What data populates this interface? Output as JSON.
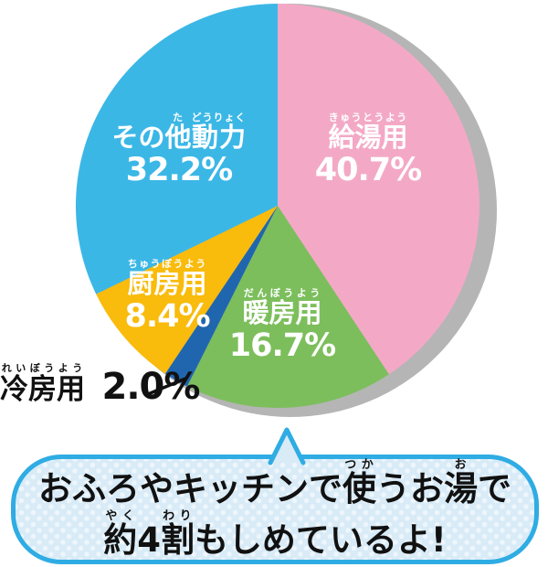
{
  "colors": {
    "kyuto": "#F3A9C6",
    "danbo": "#7CBE5C",
    "reibo": "#2066AF",
    "chubo": "#F9BB0C",
    "sonota": "#3BB7E6",
    "shadow": "#B5B5B5",
    "bubble-border": "#2FACE3",
    "bubble-bg": "#D8EBF7",
    "bubble-dot": "#EEF6FC",
    "label-on-slice": "#FFFFFF",
    "label-outside": "#111111"
  },
  "chart_data": {
    "type": "pie",
    "unit": "%",
    "start_angle_deg": 0,
    "direction": "clockwise",
    "legend_position": "on-slice",
    "slices": [
      {
        "id": "kyuto",
        "label": "給湯用",
        "furigana": "きゅうとうよう",
        "value": 40.7,
        "pct_label": "40.7%",
        "color": "#F3A9C6",
        "label_placement": "inside"
      },
      {
        "id": "danbo",
        "label": "暖房用",
        "furigana": "だんぼうよう",
        "value": 16.7,
        "pct_label": "16.7%",
        "color": "#7CBE5C",
        "label_placement": "inside"
      },
      {
        "id": "reibo",
        "label": "冷房用",
        "furigana": "れいぼうよう",
        "value": 2.0,
        "pct_label": "2.0%",
        "color": "#2066AF",
        "label_placement": "outside-with-leader-line"
      },
      {
        "id": "chubo",
        "label": "厨房用",
        "furigana": "ちゅうぼうよう",
        "value": 8.4,
        "pct_label": "8.4%",
        "color": "#F9BB0C",
        "label_placement": "inside"
      },
      {
        "id": "sonota",
        "label": "その他動力",
        "furigana": "た どうりょく",
        "value": 32.2,
        "pct_label": "32.2%",
        "color": "#3BB7E6",
        "label_placement": "inside"
      }
    ]
  },
  "labels": {
    "kyuto": {
      "parts": [
        {
          "t": "給湯用",
          "r": "きゅうとうよう"
        }
      ],
      "pct": "40.7%"
    },
    "danbo": {
      "parts": [
        {
          "t": "暖房用",
          "r": "だんぼうよう"
        }
      ],
      "pct": "16.7%"
    },
    "chubo": {
      "parts": [
        {
          "t": "厨房用",
          "r": "ちゅうぼうよう"
        }
      ],
      "pct": "8.4%"
    },
    "sonota": {
      "parts": [
        {
          "t": "その"
        },
        {
          "t": "他",
          "r": "た"
        },
        {
          "t": "動力",
          "r": "どうりょく"
        }
      ],
      "pct": "32.2%"
    },
    "reibo": {
      "parts": [
        {
          "t": "冷房用",
          "r": "れいぼうよう"
        }
      ],
      "pct": "2.0%"
    }
  },
  "callout": {
    "line1_text": "おふろやキッチンで使うお湯で",
    "line2_text": "約4割もしめているよ!",
    "line1_parts": [
      {
        "t": "おふろやキッチンで"
      },
      {
        "t": "使",
        "r": "つか"
      },
      {
        "t": "うお"
      },
      {
        "t": "湯",
        "r": "お"
      },
      {
        "t": "で"
      }
    ],
    "line2_parts": [
      {
        "t": "約",
        "r": "やく"
      },
      {
        "t": "4"
      },
      {
        "t": "割",
        "r": "わり"
      },
      {
        "t": "もしめているよ!"
      }
    ]
  }
}
